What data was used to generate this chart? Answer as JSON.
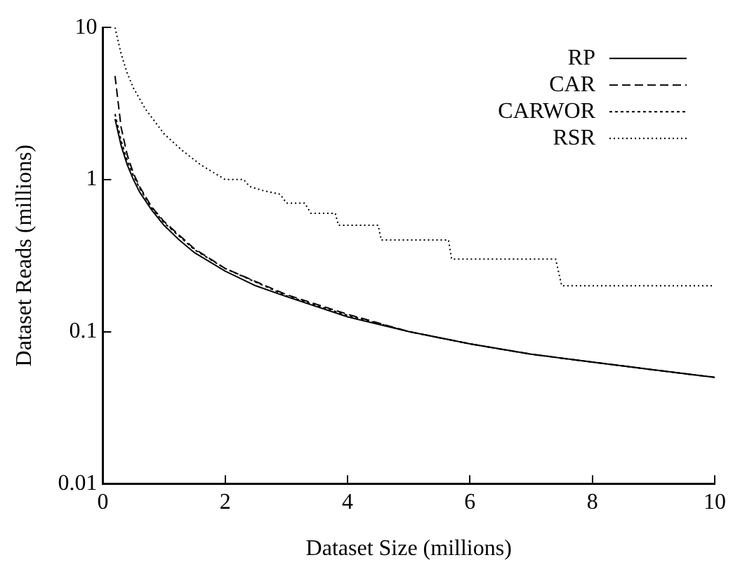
{
  "chart_data": {
    "type": "line",
    "xlabel": "Dataset Size (millions)",
    "ylabel": "Dataset Reads (millions)",
    "xlim": [
      0,
      10
    ],
    "xticks": [
      0,
      2,
      4,
      6,
      8,
      10
    ],
    "ylim": [
      0.01,
      10
    ],
    "yticks": [
      0.01,
      0.1,
      1,
      10
    ],
    "log": "y",
    "grid": false,
    "legend": "top right",
    "marker": "none",
    "series": [
      {
        "name": "RP",
        "color": "#000000",
        "line_style": "solid",
        "x": [
          0.2,
          0.3,
          0.4,
          0.5,
          0.6,
          0.8,
          1,
          1.25,
          1.5,
          2,
          2.5,
          3,
          4,
          5,
          6,
          7,
          8,
          9,
          10
        ],
        "values": [
          2.5,
          1.67,
          1.25,
          1,
          0.83,
          0.63,
          0.5,
          0.4,
          0.33,
          0.25,
          0.2,
          0.17,
          0.125,
          0.1,
          0.083,
          0.071,
          0.063,
          0.056,
          0.05
        ]
      },
      {
        "name": "CAR",
        "color": "#000000",
        "line_style": "dashed",
        "x": [
          0.2,
          0.3,
          0.4,
          0.5,
          0.6,
          0.8,
          1,
          1.5,
          2,
          3,
          4,
          5,
          6,
          7,
          8,
          9,
          10
        ],
        "values": [
          4.8,
          2.2,
          1.45,
          1.1,
          0.9,
          0.66,
          0.53,
          0.35,
          0.26,
          0.175,
          0.13,
          0.1,
          0.083,
          0.071,
          0.063,
          0.056,
          0.05
        ]
      },
      {
        "name": "CARWOR",
        "color": "#000000",
        "line_style": "dotted",
        "x": [
          0.2,
          0.3,
          0.4,
          0.5,
          0.6,
          0.8,
          1,
          1.5,
          2,
          3,
          4,
          5,
          6,
          7,
          8,
          9,
          10
        ],
        "values": [
          2.7,
          1.8,
          1.33,
          1.06,
          0.88,
          0.65,
          0.52,
          0.345,
          0.26,
          0.172,
          0.128,
          0.1,
          0.083,
          0.071,
          0.063,
          0.056,
          0.05
        ]
      },
      {
        "name": "RSR",
        "color": "#000000",
        "line_style": "dotted",
        "x": [
          0.2,
          0.3,
          0.4,
          0.5,
          0.7,
          1.0,
          1.3,
          1.6,
          2.0,
          2.3,
          2.4,
          2.6,
          2.9,
          3.0,
          3.3,
          3.4,
          3.8,
          3.85,
          4.5,
          4.55,
          5.65,
          5.7,
          7.4,
          7.5,
          10
        ],
        "values": [
          10,
          6.7,
          5,
          4,
          2.9,
          2,
          1.55,
          1.25,
          1.0,
          1.0,
          0.9,
          0.85,
          0.8,
          0.7,
          0.7,
          0.6,
          0.6,
          0.5,
          0.5,
          0.4,
          0.4,
          0.3,
          0.3,
          0.2,
          0.2
        ]
      }
    ]
  }
}
